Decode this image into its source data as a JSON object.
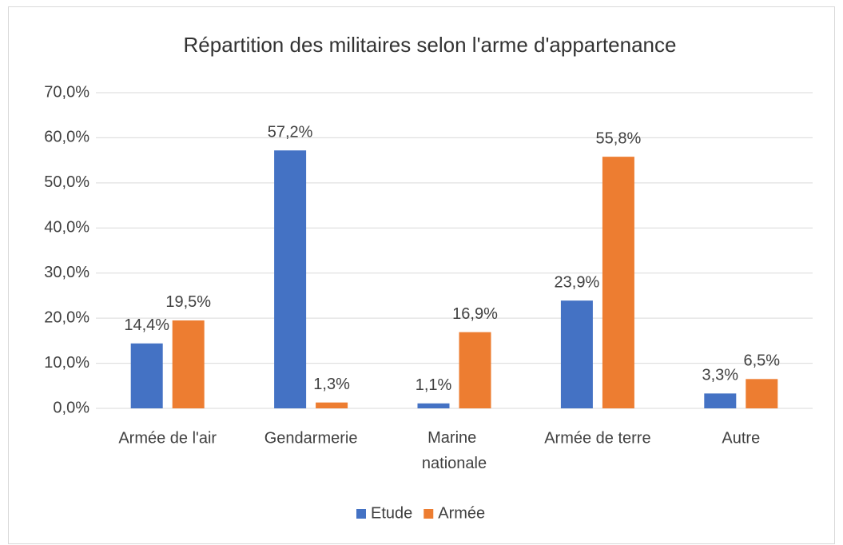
{
  "chart_data": {
    "type": "bar",
    "title": "Répartition des militaires selon l'arme d'appartenance",
    "categories": [
      "Armée de l'air",
      "Gendarmerie",
      "Marine nationale",
      "Armée de terre",
      "Autre"
    ],
    "series": [
      {
        "name": "Etude",
        "color": "#4472c4",
        "values": [
          14.4,
          57.2,
          1.1,
          23.9,
          3.3
        ],
        "value_labels": [
          "14,4%",
          "57,2%",
          "1,1%",
          "23,9%",
          "3,3%"
        ]
      },
      {
        "name": "Armée",
        "color": "#ed7d31",
        "values": [
          19.5,
          1.3,
          16.9,
          55.8,
          6.5
        ],
        "value_labels": [
          "19,5%",
          "1,3%",
          "16,9%",
          "55,8%",
          "6,5%"
        ]
      }
    ],
    "ylim": [
      0,
      70
    ],
    "yticks": [
      {
        "value": 0,
        "label": "0,0%"
      },
      {
        "value": 10,
        "label": "10,0%"
      },
      {
        "value": 20,
        "label": "20,0%"
      },
      {
        "value": 30,
        "label": "30,0%"
      },
      {
        "value": 40,
        "label": "40,0%"
      },
      {
        "value": 50,
        "label": "50,0%"
      },
      {
        "value": 60,
        "label": "60,0%"
      },
      {
        "value": 70,
        "label": "70,0%"
      }
    ],
    "grid": true,
    "legend": "bottom"
  }
}
